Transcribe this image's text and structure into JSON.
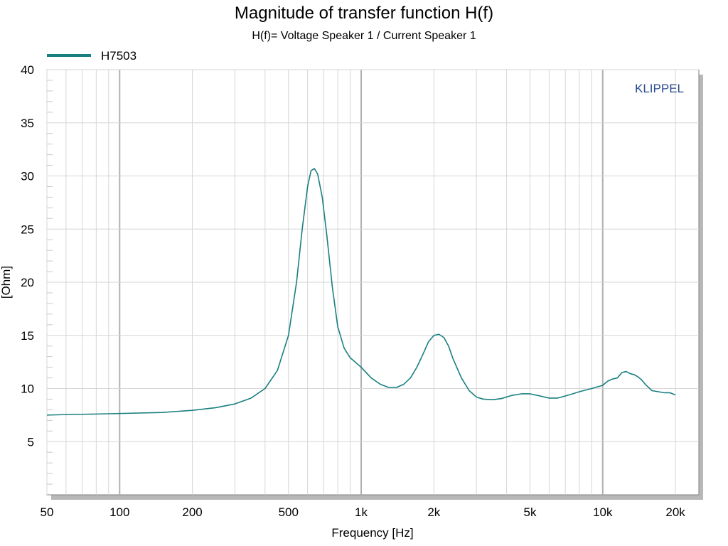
{
  "chart_data": {
    "type": "line",
    "title": "Magnitude of transfer function H(f)",
    "subtitle": "H(f)= Voltage Speaker 1 / Current Speaker 1",
    "xlabel": "Frequency [Hz]",
    "ylabel": "[Ohm]",
    "x_scale": "log",
    "xlim": [
      50,
      25000
    ],
    "ylim": [
      0,
      40
    ],
    "x_ticks": [
      {
        "value": 50,
        "label": "50"
      },
      {
        "value": 100,
        "label": "100"
      },
      {
        "value": 200,
        "label": "200"
      },
      {
        "value": 500,
        "label": "500"
      },
      {
        "value": 1000,
        "label": "1k"
      },
      {
        "value": 2000,
        "label": "2k"
      },
      {
        "value": 5000,
        "label": "5k"
      },
      {
        "value": 10000,
        "label": "10k"
      },
      {
        "value": 20000,
        "label": "20k"
      }
    ],
    "y_ticks": [
      {
        "value": 5,
        "label": "5"
      },
      {
        "value": 10,
        "label": "10"
      },
      {
        "value": 15,
        "label": "15"
      },
      {
        "value": 20,
        "label": "20"
      },
      {
        "value": 25,
        "label": "25"
      },
      {
        "value": 30,
        "label": "30"
      },
      {
        "value": 35,
        "label": "35"
      },
      {
        "value": 40,
        "label": "40"
      }
    ],
    "grid": true,
    "legend_position": "top-left",
    "brand": "KLIPPEL",
    "series": [
      {
        "name": "H7503",
        "color": "#1a7f80",
        "x": [
          50,
          60,
          80,
          100,
          150,
          200,
          250,
          300,
          350,
          400,
          450,
          500,
          540,
          570,
          600,
          620,
          640,
          660,
          690,
          720,
          760,
          800,
          850,
          900,
          1000,
          1100,
          1200,
          1300,
          1400,
          1500,
          1600,
          1700,
          1800,
          1900,
          2000,
          2100,
          2200,
          2300,
          2400,
          2600,
          2800,
          3000,
          3200,
          3500,
          3800,
          4200,
          4600,
          5000,
          5500,
          6000,
          6500,
          7000,
          7500,
          8000,
          9000,
          10000,
          10500,
          11000,
          11500,
          12000,
          12500,
          13000,
          13500,
          14000,
          14500,
          15000,
          16000,
          17000,
          18000,
          19000,
          20000
        ],
        "y": [
          7.5,
          7.55,
          7.6,
          7.65,
          7.75,
          7.95,
          8.2,
          8.55,
          9.1,
          10.0,
          11.7,
          15.0,
          20.0,
          25.0,
          29.0,
          30.5,
          30.7,
          30.2,
          28.0,
          24.5,
          19.5,
          15.8,
          13.8,
          12.9,
          12.0,
          11.0,
          10.4,
          10.1,
          10.1,
          10.4,
          11.0,
          12.0,
          13.2,
          14.4,
          15.0,
          15.1,
          14.8,
          14.0,
          12.8,
          11.0,
          9.8,
          9.2,
          9.0,
          8.95,
          9.05,
          9.35,
          9.5,
          9.5,
          9.3,
          9.1,
          9.1,
          9.3,
          9.5,
          9.7,
          10.0,
          10.3,
          10.7,
          10.9,
          11.0,
          11.5,
          11.6,
          11.4,
          11.3,
          11.1,
          10.8,
          10.4,
          9.8,
          9.7,
          9.6,
          9.6,
          9.4
        ]
      }
    ]
  }
}
